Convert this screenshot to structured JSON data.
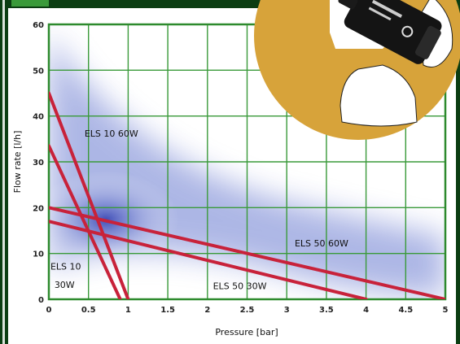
{
  "chart_data": {
    "type": "line",
    "xlabel": "Pressure [bar]",
    "ylabel": "Flow rate [l/h]",
    "xlim": [
      0,
      5
    ],
    "ylim": [
      0,
      60
    ],
    "x_ticks": [
      "0",
      "0.5",
      "1",
      "1.5",
      "2",
      "2.5",
      "3",
      "3.5",
      "4",
      "4.5",
      "5"
    ],
    "x_tick_values": [
      0,
      0.5,
      1,
      1.5,
      2,
      2.5,
      3,
      3.5,
      4,
      4.5,
      5
    ],
    "y_ticks": [
      "0",
      "10",
      "20",
      "30",
      "40",
      "50",
      "60"
    ],
    "y_tick_values": [
      0,
      10,
      20,
      30,
      40,
      50,
      60
    ],
    "grid": true,
    "series": [
      {
        "name": "ELS 10 60W",
        "x": [
          0,
          1.0
        ],
        "y": [
          45,
          0
        ]
      },
      {
        "name": "ELS 10 30W",
        "x": [
          0,
          0.9
        ],
        "y": [
          33.5,
          0
        ]
      },
      {
        "name": "ELS 50 60W",
        "x": [
          0,
          5.0
        ],
        "y": [
          20,
          0
        ]
      },
      {
        "name": "ELS 50 30W",
        "x": [
          0,
          4.0
        ],
        "y": [
          17,
          0
        ]
      }
    ],
    "annotations": [
      {
        "text": "ELS 10 60W",
        "x": 0.45,
        "y": 35.5
      },
      {
        "text": "ELS 10",
        "x": 0.02,
        "y": 6.5
      },
      {
        "text": "30W",
        "x": 0.07,
        "y": 2.5
      },
      {
        "text": "ELS 50 60W",
        "x": 3.1,
        "y": 11.5
      },
      {
        "text": "ELS 50 30W",
        "x": 2.07,
        "y": 2.2
      }
    ],
    "colors": {
      "line": "#c8223a",
      "grid": "#3a9a3a",
      "frame": "#2d8a2d",
      "background": "#0b3d12",
      "plot_border": "#ffffff",
      "band": "#3a48b4",
      "circle": "#d7a33a"
    }
  }
}
